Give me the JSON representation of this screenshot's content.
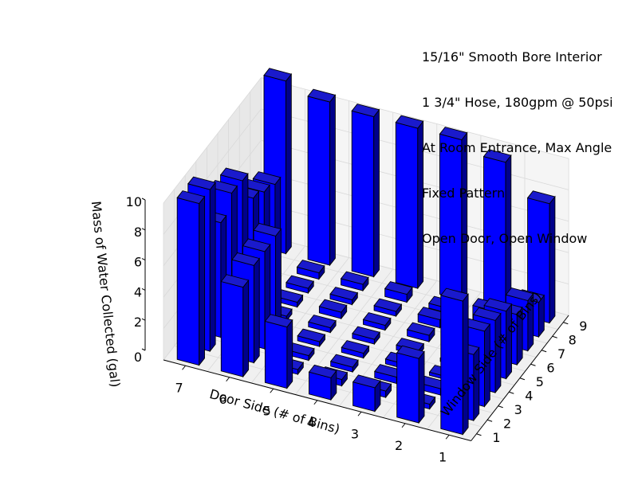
{
  "chart_data": {
    "type": "bar3d",
    "annotation": [
      "15/16\" Smooth Bore Interior",
      "1 3/4\" Hose, 180gpm @ 50psi",
      "At Room Entrance, Max Angle",
      "Fixed Pattern",
      "Open Door, Open Window"
    ],
    "xlabel": "Door Side (# of Bins)",
    "ylabel": "Window Side (# of Bins)",
    "zlabel": "Mass of Water Collected (gal)",
    "x_ticks": [
      "1",
      "2",
      "3",
      "4",
      "5",
      "6",
      "7"
    ],
    "y_ticks": [
      "1",
      "2",
      "3",
      "4",
      "5",
      "6",
      "7",
      "8",
      "9"
    ],
    "z_ticks": [
      "0",
      "2",
      "4",
      "6",
      "8",
      "10"
    ],
    "zlim": [
      0,
      10
    ],
    "grid": true,
    "bar_color": "#0000ff",
    "values": [
      [
        8.5,
        4.2,
        4.8,
        4.6,
        4.3,
        3.2,
        3.2,
        2.2,
        7.6
      ],
      [
        4.1,
        0.3,
        0.4,
        0.2,
        0.2,
        0.4,
        0.3,
        0.9,
        9.5
      ],
      [
        1.5,
        0.4,
        0.4,
        0.3,
        0.3,
        0.4,
        0.5,
        0.3,
        10.2
      ],
      [
        1.4,
        0.4,
        0.3,
        0.3,
        0.3,
        0.3,
        0.3,
        0.5,
        10.2
      ],
      [
        3.9,
        0.3,
        0.3,
        0.3,
        0.3,
        0.4,
        0.3,
        0.4,
        10.2
      ],
      [
        5.7,
        6.2,
        6.2,
        6.3,
        0.3,
        0.3,
        0.3,
        0.4,
        10.4
      ],
      [
        10.3,
        10.3,
        7.3,
        8.3,
        8.2,
        6.2,
        5.7,
        5.3,
        11.0
      ]
    ]
  }
}
